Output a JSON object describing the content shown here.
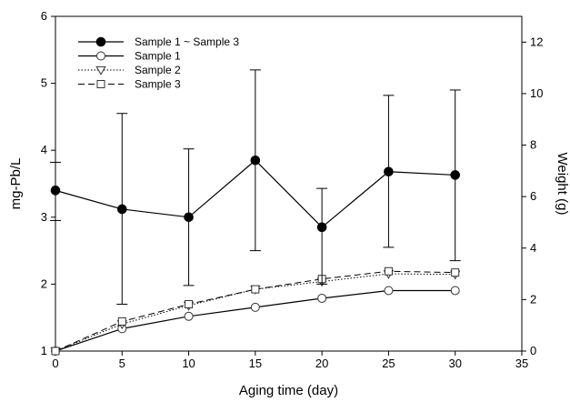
{
  "chart_data": {
    "type": "line",
    "xlabel": "Aging time (day)",
    "ylabel": "mg-Pb/L",
    "y2label": "Weight (g)",
    "xlim": [
      0,
      35
    ],
    "ylim": [
      1,
      6
    ],
    "y2lim": [
      0,
      13
    ],
    "xticks": [
      0,
      5,
      10,
      15,
      20,
      25,
      30,
      35
    ],
    "yticks": [
      1,
      2,
      3,
      4,
      5,
      6
    ],
    "y2ticks": [
      0,
      2,
      4,
      6,
      8,
      10,
      12
    ],
    "grid": false,
    "legend_position": "top-left",
    "series": [
      {
        "name": "Sample 1 ~ Sample 3",
        "axis": "left",
        "marker": "filled-circle",
        "line": "solid",
        "x": [
          0,
          5,
          10,
          15,
          20,
          25,
          30
        ],
        "y": [
          3.4,
          3.12,
          3.0,
          3.85,
          2.85,
          3.68,
          3.63
        ],
        "error_low": [
          2.95,
          1.7,
          1.98,
          2.5,
          2.0,
          2.55,
          2.35
        ],
        "error_high": [
          3.82,
          4.55,
          4.02,
          5.2,
          3.43,
          4.82,
          4.9
        ]
      },
      {
        "name": "Sample 1",
        "axis": "right",
        "marker": "open-circle",
        "line": "solid",
        "x": [
          0,
          5,
          10,
          15,
          20,
          25,
          30
        ],
        "y": [
          0,
          0.87,
          1.35,
          1.7,
          2.05,
          2.35,
          2.35
        ]
      },
      {
        "name": "Sample 2",
        "axis": "right",
        "marker": "open-triangle-down",
        "line": "dotted",
        "x": [
          0,
          5,
          10,
          15,
          20,
          25,
          30
        ],
        "y": [
          0,
          1.05,
          1.77,
          2.4,
          2.7,
          3.0,
          2.98
        ]
      },
      {
        "name": "Sample 3",
        "axis": "right",
        "marker": "open-square",
        "line": "dashed",
        "x": [
          0,
          5,
          10,
          15,
          20,
          25,
          30
        ],
        "y": [
          0,
          1.15,
          1.82,
          2.4,
          2.8,
          3.1,
          3.05
        ]
      }
    ]
  }
}
